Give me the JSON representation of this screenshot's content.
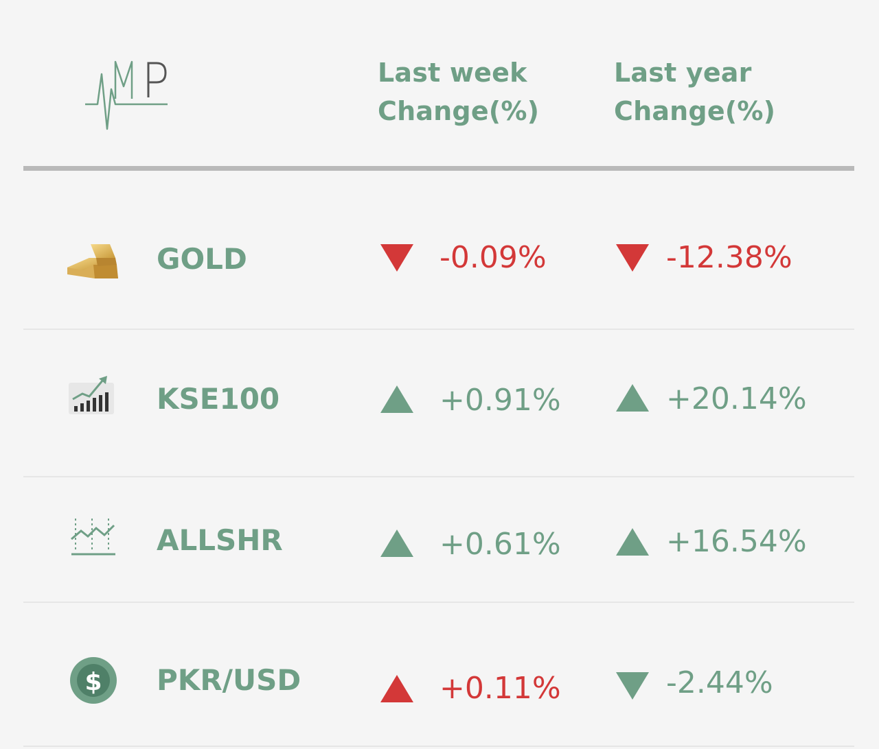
{
  "logo": {
    "text": "MP",
    "color": "#6f9f86"
  },
  "headers": {
    "week_line1": "Last week",
    "week_line2": "Change(%)",
    "year_line1": "Last year",
    "year_line2": "Change(%)"
  },
  "colors": {
    "up": "#6f9f86",
    "down": "#d33838",
    "accent": "#6f9f86"
  },
  "rows": [
    {
      "name": "GOLD",
      "icon": "gold-bars-icon",
      "week": {
        "value": "-0.09%",
        "direction": "down",
        "color": "red"
      },
      "year": {
        "value": "-12.38%",
        "direction": "down",
        "color": "red"
      }
    },
    {
      "name": "KSE100",
      "icon": "stock-growth-chart-icon",
      "week": {
        "value": "+0.91%",
        "direction": "up",
        "color": "green"
      },
      "year": {
        "value": "+20.14%",
        "direction": "up",
        "color": "green"
      }
    },
    {
      "name": "ALLSHR",
      "icon": "line-chart-icon",
      "week": {
        "value": "+0.61%",
        "direction": "up",
        "color": "green"
      },
      "year": {
        "value": "+16.54%",
        "direction": "up",
        "color": "green"
      }
    },
    {
      "name": "PKR/USD",
      "icon": "dollar-coin-icon",
      "week": {
        "value": "+0.11%",
        "direction": "up",
        "color": "red"
      },
      "year": {
        "value": "-2.44%",
        "direction": "down",
        "color": "green"
      }
    }
  ]
}
